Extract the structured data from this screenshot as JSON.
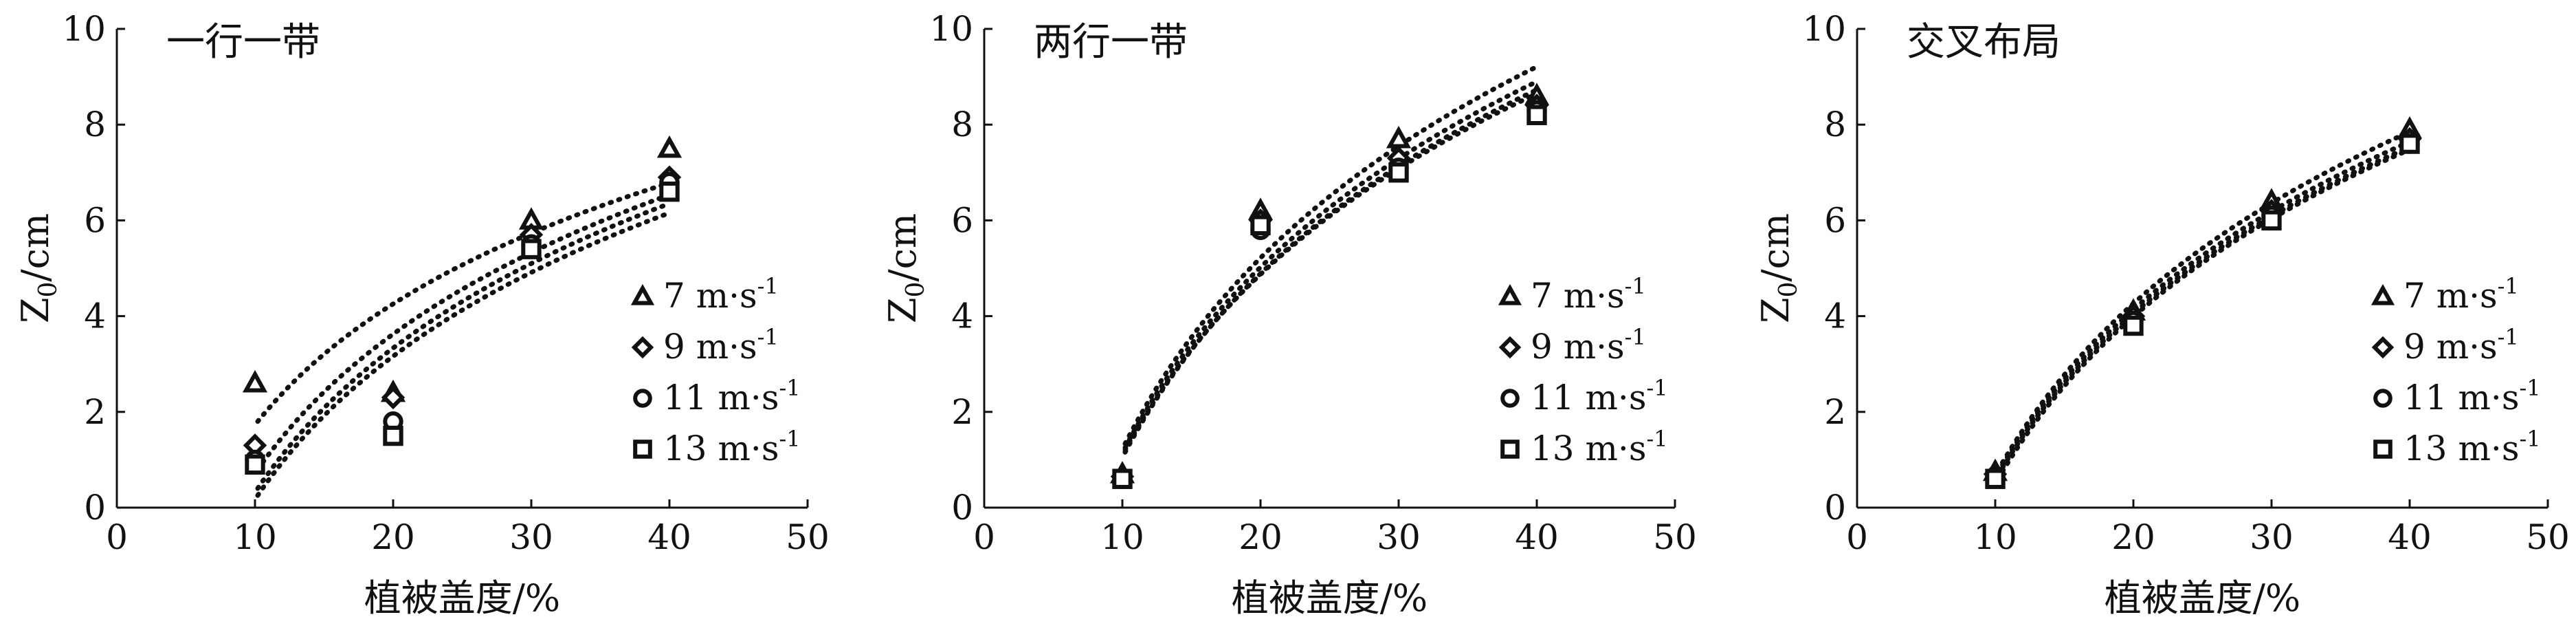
{
  "chart_data": [
    {
      "type": "scatter",
      "title": "一行一带",
      "xlabel": "植被盖度/%",
      "ylabel": "Z0/cm",
      "xlim": [
        0,
        50
      ],
      "ylim": [
        0,
        10
      ],
      "xticks": [
        0,
        10,
        20,
        30,
        40,
        50
      ],
      "yticks": [
        0,
        2,
        4,
        6,
        8,
        10
      ],
      "grid": false,
      "legend_position": "right",
      "series": [
        {
          "name": "7 m·s-1",
          "marker": "triangle",
          "x": [
            10,
            20,
            30,
            40
          ],
          "y": [
            2.6,
            2.4,
            6.0,
            7.5
          ],
          "trendline": "power"
        },
        {
          "name": "9 m·s-1",
          "marker": "diamond",
          "x": [
            10,
            20,
            30,
            40
          ],
          "y": [
            1.3,
            2.3,
            5.7,
            6.9
          ],
          "trendline": "power"
        },
        {
          "name": "11 m·s-1",
          "marker": "circle",
          "x": [
            10,
            20,
            30,
            40
          ],
          "y": [
            1.0,
            1.8,
            5.5,
            6.8
          ],
          "trendline": "power"
        },
        {
          "name": "13 m·s-1",
          "marker": "square",
          "x": [
            10,
            20,
            30,
            40
          ],
          "y": [
            0.9,
            1.5,
            5.4,
            6.6
          ],
          "trendline": "power"
        }
      ]
    },
    {
      "type": "scatter",
      "title": "两行一带",
      "xlabel": "植被盖度/%",
      "ylabel": "Z0/cm",
      "xlim": [
        0,
        50
      ],
      "ylim": [
        0,
        10
      ],
      "xticks": [
        0,
        10,
        20,
        30,
        40,
        50
      ],
      "yticks": [
        0,
        2,
        4,
        6,
        8,
        10
      ],
      "grid": false,
      "legend_position": "right",
      "series": [
        {
          "name": "7 m·s-1",
          "marker": "triangle",
          "x": [
            10,
            20,
            30,
            40
          ],
          "y": [
            0.7,
            6.2,
            7.7,
            8.6
          ],
          "trendline": "power"
        },
        {
          "name": "9 m·s-1",
          "marker": "diamond",
          "x": [
            10,
            20,
            30,
            40
          ],
          "y": [
            0.65,
            6.0,
            7.3,
            8.4
          ],
          "trendline": "power"
        },
        {
          "name": "11 m·s-1",
          "marker": "circle",
          "x": [
            10,
            20,
            30,
            40
          ],
          "y": [
            0.6,
            5.8,
            7.1,
            8.3
          ],
          "trendline": "power"
        },
        {
          "name": "13 m·s-1",
          "marker": "square",
          "x": [
            10,
            20,
            30,
            40
          ],
          "y": [
            0.6,
            5.9,
            7.0,
            8.2
          ],
          "trendline": "power"
        }
      ]
    },
    {
      "type": "scatter",
      "title": "交叉布局",
      "xlabel": "植被盖度/%",
      "ylabel": "Z0/cm",
      "xlim": [
        0,
        50
      ],
      "ylim": [
        0,
        10
      ],
      "xticks": [
        0,
        10,
        20,
        30,
        40,
        50
      ],
      "yticks": [
        0,
        2,
        4,
        6,
        8,
        10
      ],
      "grid": false,
      "legend_position": "right",
      "series": [
        {
          "name": "7 m·s-1",
          "marker": "triangle",
          "x": [
            10,
            20,
            30,
            40
          ],
          "y": [
            0.75,
            4.1,
            6.4,
            7.9
          ],
          "trendline": "power"
        },
        {
          "name": "9 m·s-1",
          "marker": "diamond",
          "x": [
            10,
            20,
            30,
            40
          ],
          "y": [
            0.7,
            4.0,
            6.2,
            7.7
          ],
          "trendline": "power"
        },
        {
          "name": "11 m·s-1",
          "marker": "circle",
          "x": [
            10,
            20,
            30,
            40
          ],
          "y": [
            0.65,
            3.9,
            6.1,
            7.6
          ],
          "trendline": "power"
        },
        {
          "name": "13 m·s-1",
          "marker": "square",
          "x": [
            10,
            20,
            30,
            40
          ],
          "y": [
            0.6,
            3.8,
            6.0,
            7.6
          ],
          "trendline": "power"
        }
      ]
    }
  ]
}
